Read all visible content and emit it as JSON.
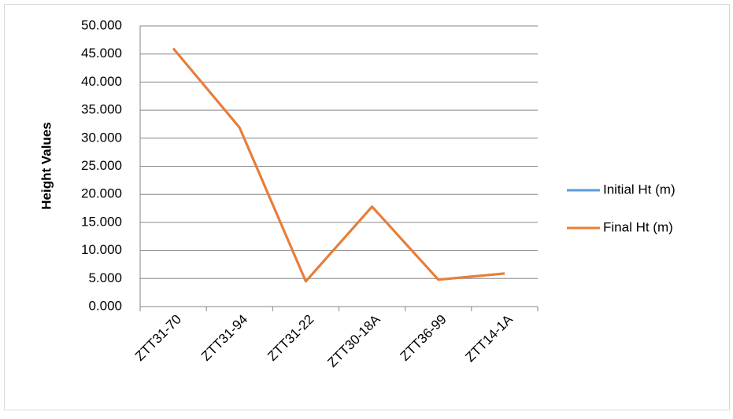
{
  "chart_data": {
    "type": "line",
    "y_label": "Height Values",
    "categories": [
      "ZTT31-70",
      "ZTT31-94",
      "ZTT31-22",
      "ZTT30-18A",
      "ZTT36-99",
      "ZTT14-1A"
    ],
    "series": [
      {
        "name": "Initial Ht (m)",
        "color": "#5b9bd5",
        "values": [
          46.0,
          31.9,
          4.5,
          17.8,
          4.8,
          5.9
        ]
      },
      {
        "name": "Final Ht (m)",
        "color": "#ed7d31",
        "values": [
          46.0,
          31.9,
          4.5,
          17.8,
          4.8,
          5.9
        ]
      }
    ],
    "ylim": [
      0,
      50
    ],
    "yticks": [
      {
        "value": 0,
        "label": "0.000"
      },
      {
        "value": 5,
        "label": "5.000"
      },
      {
        "value": 10,
        "label": "10.000"
      },
      {
        "value": 15,
        "label": "15.000"
      },
      {
        "value": 20,
        "label": "20.000"
      },
      {
        "value": 25,
        "label": "25.000"
      },
      {
        "value": 30,
        "label": "30.000"
      },
      {
        "value": 35,
        "label": "35.000"
      },
      {
        "value": 40,
        "label": "40.000"
      },
      {
        "value": 45,
        "label": "45.000"
      },
      {
        "value": 50,
        "label": "50.000"
      }
    ],
    "grid": true,
    "legend": "right"
  }
}
